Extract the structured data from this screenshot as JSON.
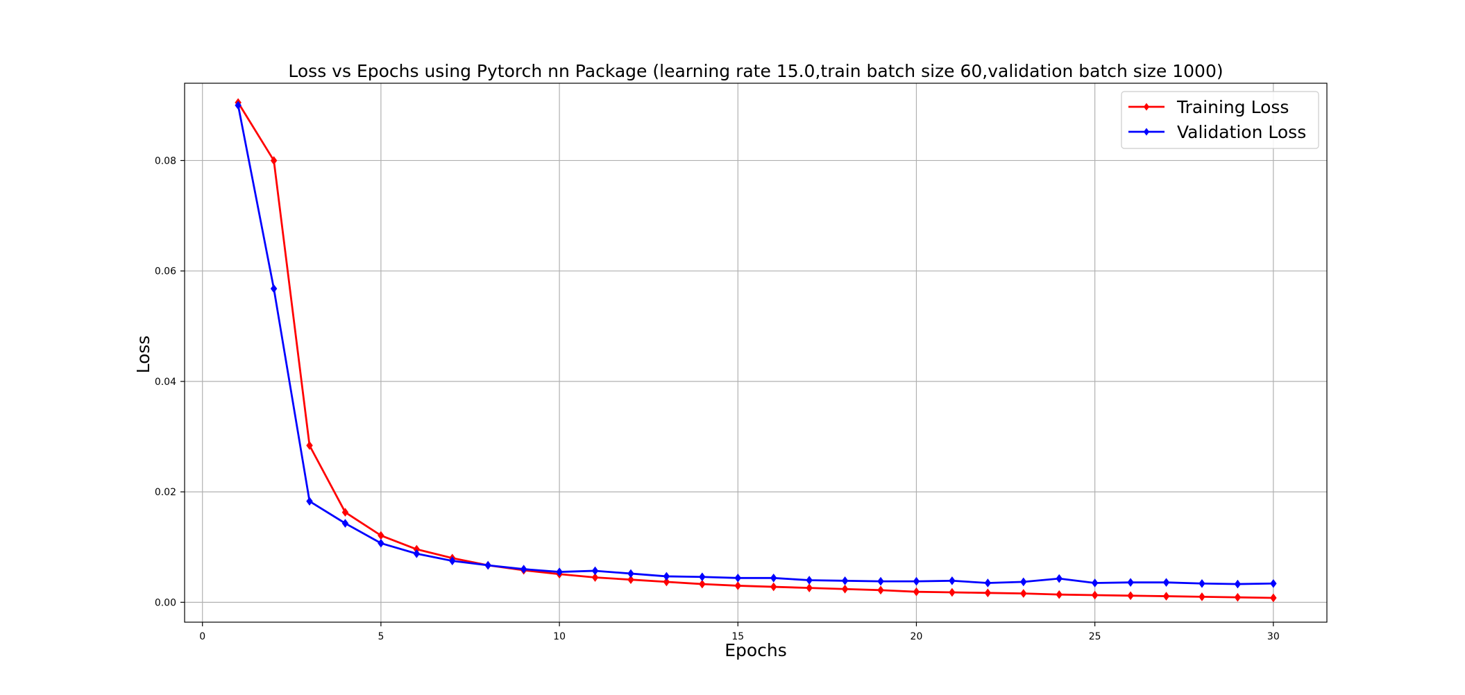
{
  "chart_data": {
    "type": "line",
    "title": "Loss vs Epochs using Pytorch nn Package (learning rate 15.0,train batch size 60,validation batch size 1000)",
    "xlabel": "Epochs",
    "ylabel": "Loss",
    "xlim": [
      -0.5,
      31.5
    ],
    "ylim": [
      -0.0036,
      0.094
    ],
    "xticks": [
      0,
      5,
      10,
      15,
      20,
      25,
      30
    ],
    "xtick_labels": [
      "0",
      "5",
      "10",
      "15",
      "20",
      "25",
      "30"
    ],
    "yticks": [
      0.0,
      0.02,
      0.04,
      0.06,
      0.08
    ],
    "ytick_labels": [
      "0.00",
      "0.02",
      "0.04",
      "0.06",
      "0.08"
    ],
    "grid": true,
    "legend_position": "top-right",
    "x": [
      1,
      2,
      3,
      4,
      5,
      6,
      7,
      8,
      9,
      10,
      11,
      12,
      13,
      14,
      15,
      16,
      17,
      18,
      19,
      20,
      21,
      22,
      23,
      24,
      25,
      26,
      27,
      28,
      29,
      30
    ],
    "series": [
      {
        "name": "Training Loss",
        "color": "#ff0000",
        "marker": "diamond",
        "values": [
          0.0905,
          0.08,
          0.0284,
          0.0163,
          0.0121,
          0.0096,
          0.008,
          0.0067,
          0.0058,
          0.0051,
          0.0045,
          0.0041,
          0.0037,
          0.0033,
          0.003,
          0.0028,
          0.0026,
          0.0024,
          0.0022,
          0.0019,
          0.0018,
          0.0017,
          0.0016,
          0.0014,
          0.0013,
          0.0012,
          0.0011,
          0.001,
          0.0009,
          0.0008
        ]
      },
      {
        "name": "Validation Loss",
        "color": "#0000ff",
        "marker": "diamond",
        "values": [
          0.09,
          0.0568,
          0.0183,
          0.0143,
          0.0107,
          0.0088,
          0.0075,
          0.0067,
          0.006,
          0.0055,
          0.0057,
          0.0052,
          0.0047,
          0.0046,
          0.0044,
          0.0044,
          0.004,
          0.0039,
          0.0038,
          0.0038,
          0.0039,
          0.0035,
          0.0037,
          0.0043,
          0.0035,
          0.0036,
          0.0036,
          0.0034,
          0.0033,
          0.0034
        ]
      }
    ]
  }
}
